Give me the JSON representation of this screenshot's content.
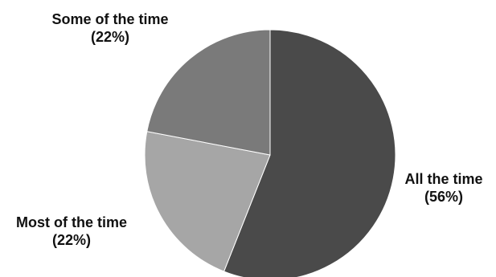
{
  "chart_data": {
    "type": "pie",
    "title": "",
    "slices": [
      {
        "label": "All the time",
        "percent_text": "(56%)",
        "value": 56,
        "color": "#4a4a4a"
      },
      {
        "label": "Most of the time",
        "percent_text": "(22%)",
        "value": 22,
        "color": "#a6a6a6"
      },
      {
        "label": "Some of the time",
        "percent_text": "(22%)",
        "value": 22,
        "color": "#7a7a7a"
      }
    ]
  }
}
